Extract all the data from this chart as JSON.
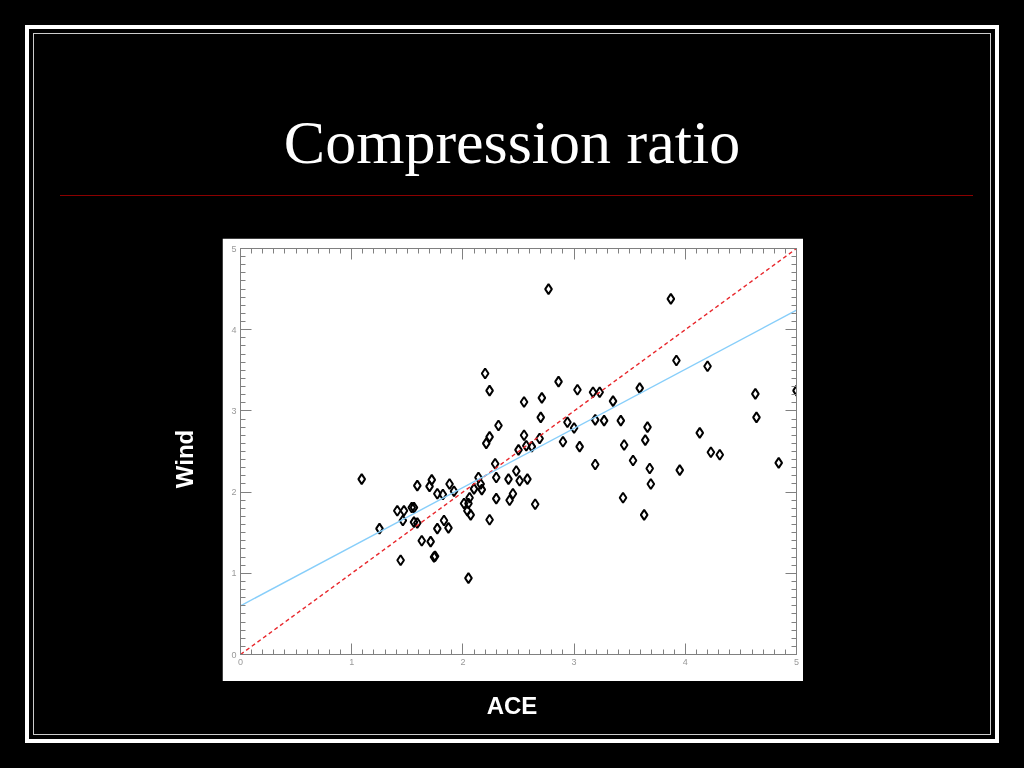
{
  "chart_data": {
    "type": "scatter",
    "title": "Compression ratio",
    "xlabel": "ACE",
    "ylabel": "Wind",
    "xlim": [
      0,
      5
    ],
    "ylim": [
      0,
      5
    ],
    "xticks": [
      0,
      1,
      2,
      3,
      4,
      5
    ],
    "yticks": [
      0,
      1,
      2,
      3,
      4,
      5
    ],
    "grid": false,
    "marker": "diamond",
    "series": [
      {
        "color": "#000000",
        "x": [
          1.09,
          1.25,
          1.41,
          1.44,
          1.46,
          1.47,
          1.54,
          1.56,
          1.56,
          1.59,
          1.59,
          1.63,
          1.7,
          1.72,
          1.71,
          1.74,
          1.75,
          1.77,
          1.77,
          1.82,
          1.83,
          1.87,
          1.88,
          1.92,
          2.01,
          2.04,
          2.05,
          2.06,
          2.07,
          2.05,
          2.1,
          2.14,
          2.16,
          2.17,
          2.24,
          2.21,
          2.24,
          2.32,
          2.2,
          2.24,
          2.29,
          2.3,
          2.3,
          2.41,
          2.42,
          2.45,
          2.48,
          2.5,
          2.51,
          2.58,
          2.65,
          2.57,
          2.62,
          2.69,
          2.55,
          2.55,
          2.71,
          2.7,
          2.77,
          2.86,
          2.9,
          2.94,
          3.0,
          3.03,
          3.05,
          3.17,
          3.23,
          3.19,
          3.27,
          3.19,
          3.35,
          3.42,
          3.45,
          3.44,
          3.53,
          3.59,
          3.64,
          3.66,
          3.68,
          3.69,
          3.63,
          3.87,
          3.92,
          3.95,
          4.13,
          4.2,
          4.23,
          4.31,
          4.63,
          4.64,
          4.84,
          5.0
        ],
        "values": [
          2.16,
          1.55,
          1.77,
          1.16,
          1.65,
          1.77,
          1.81,
          1.81,
          1.63,
          1.62,
          2.08,
          1.4,
          2.07,
          2.15,
          1.39,
          1.2,
          1.21,
          1.98,
          1.55,
          1.97,
          1.65,
          1.56,
          2.1,
          2.01,
          1.86,
          1.77,
          1.86,
          1.93,
          1.72,
          0.94,
          2.04,
          2.18,
          2.1,
          2.03,
          1.66,
          2.6,
          2.68,
          2.82,
          3.46,
          3.25,
          2.35,
          2.18,
          1.92,
          2.16,
          1.9,
          1.98,
          2.26,
          2.52,
          2.14,
          2.16,
          1.85,
          2.57,
          2.56,
          2.66,
          2.7,
          3.11,
          3.16,
          2.92,
          4.5,
          3.36,
          2.62,
          2.86,
          2.79,
          3.26,
          2.56,
          3.23,
          3.23,
          2.89,
          2.88,
          2.34,
          3.12,
          2.88,
          2.58,
          1.93,
          2.39,
          3.28,
          2.64,
          2.8,
          2.29,
          2.1,
          1.72,
          4.38,
          3.62,
          2.27,
          2.73,
          3.55,
          2.49,
          2.46,
          3.21,
          2.92,
          2.36,
          3.25
        ]
      },
      {
        "type": "line",
        "color": "#e8272c",
        "line_style": "dashed",
        "marker": "none",
        "x": [
          0,
          5
        ],
        "values": [
          0,
          5
        ]
      },
      {
        "type": "line",
        "color": "#87cefa",
        "line_style": "solid",
        "marker": "none",
        "x": [
          0,
          5
        ],
        "values": [
          0.6,
          4.24
        ]
      }
    ]
  }
}
